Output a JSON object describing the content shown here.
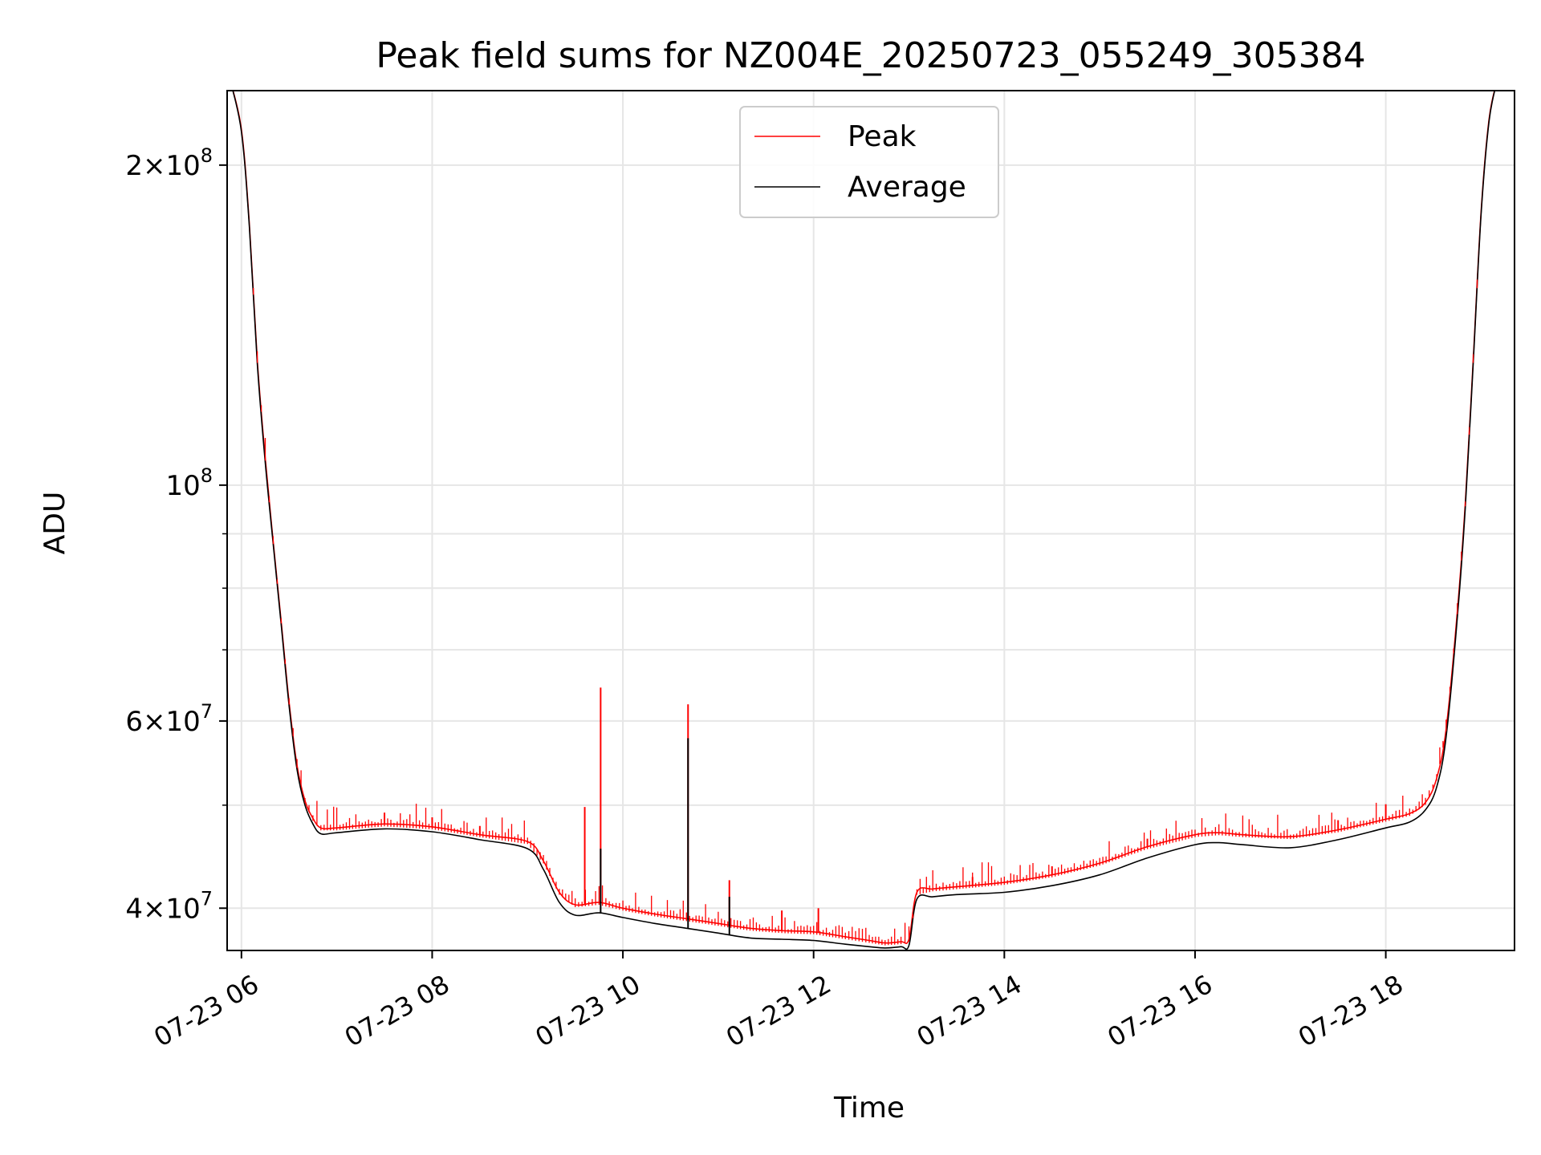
{
  "chart_data": {
    "type": "line",
    "title": "Peak field sums for NZ004E_20250723_055249_305384",
    "xlabel": "Time",
    "ylabel": "ADU",
    "yscale": "log",
    "grid": true,
    "legend": {
      "placement": "upper center",
      "entries": [
        {
          "name": "Peak",
          "color": "#ff0000"
        },
        {
          "name": "Average",
          "color": "#000000"
        }
      ]
    },
    "xlim": [
      "2025-07-23 05:51",
      "2025-07-23 19:21"
    ],
    "ylim": [
      36500000,
      235000000
    ],
    "x_ticks": [
      {
        "label": "07-23 06",
        "value": "2025-07-23 06:00"
      },
      {
        "label": "07-23 08",
        "value": "2025-07-23 08:00"
      },
      {
        "label": "07-23 10",
        "value": "2025-07-23 10:00"
      },
      {
        "label": "07-23 12",
        "value": "2025-07-23 12:00"
      },
      {
        "label": "07-23 14",
        "value": "2025-07-23 14:00"
      },
      {
        "label": "07-23 16",
        "value": "2025-07-23 16:00"
      },
      {
        "label": "07-23 18",
        "value": "2025-07-23 18:00"
      }
    ],
    "y_ticks": [
      {
        "mant": "4",
        "exp": "7",
        "value": 40000000
      },
      {
        "mant": "6",
        "exp": "7",
        "value": 60000000
      },
      {
        "mant": "",
        "exp": "8",
        "value": 100000000
      },
      {
        "mant": "2",
        "exp": "8",
        "value": 200000000
      }
    ],
    "y_minor_ticks": [
      50000000,
      70000000,
      80000000,
      90000000
    ],
    "series": [
      {
        "name": "Average",
        "color": "#000000",
        "x": [
          "2025-07-23 05:53",
          "2025-07-23 06:00",
          "2025-07-23 06:05",
          "2025-07-23 06:10",
          "2025-07-23 06:15",
          "2025-07-23 06:20",
          "2025-07-23 06:25",
          "2025-07-23 06:30",
          "2025-07-23 06:35",
          "2025-07-23 06:40",
          "2025-07-23 06:45",
          "2025-07-23 06:50",
          "2025-07-23 07:00",
          "2025-07-23 07:30",
          "2025-07-23 08:00",
          "2025-07-23 08:30",
          "2025-07-23 09:00",
          "2025-07-23 09:10",
          "2025-07-23 09:20",
          "2025-07-23 09:30",
          "2025-07-23 09:45",
          "2025-07-23 10:00",
          "2025-07-23 10:20",
          "2025-07-23 10:40",
          "2025-07-23 11:00",
          "2025-07-23 11:20",
          "2025-07-23 11:40",
          "2025-07-23 12:00",
          "2025-07-23 12:20",
          "2025-07-23 12:35",
          "2025-07-23 12:45",
          "2025-07-23 12:55",
          "2025-07-23 13:00",
          "2025-07-23 13:05",
          "2025-07-23 13:15",
          "2025-07-23 13:30",
          "2025-07-23 14:00",
          "2025-07-23 14:30",
          "2025-07-23 15:00",
          "2025-07-23 15:30",
          "2025-07-23 16:00",
          "2025-07-23 16:15",
          "2025-07-23 16:30",
          "2025-07-23 17:00",
          "2025-07-23 17:30",
          "2025-07-23 18:00",
          "2025-07-23 18:15",
          "2025-07-23 18:25",
          "2025-07-23 18:32",
          "2025-07-23 18:38",
          "2025-07-23 18:45",
          "2025-07-23 18:50",
          "2025-07-23 18:55",
          "2025-07-23 19:00",
          "2025-07-23 19:05",
          "2025-07-23 19:10"
        ],
        "y": [
          240000000,
          215000000,
          175000000,
          130000000,
          105000000,
          88000000,
          74000000,
          62000000,
          54000000,
          50000000,
          48000000,
          47000000,
          47100000,
          47500000,
          47200000,
          46400000,
          45500000,
          43500000,
          40500000,
          39400000,
          39600000,
          39200000,
          38700000,
          38300000,
          37900000,
          37500000,
          37400000,
          37300000,
          37000000,
          36800000,
          36700000,
          36800000,
          36900000,
          40800000,
          41000000,
          41200000,
          41400000,
          42000000,
          43000000,
          44600000,
          45900000,
          46100000,
          45900000,
          45600000,
          46400000,
          47600000,
          48200000,
          49500000,
          52000000,
          58000000,
          75000000,
          95000000,
          130000000,
          180000000,
          220000000,
          240000000
        ]
      },
      {
        "name": "Peak",
        "color": "#ff0000",
        "x": [
          "2025-07-23 05:53",
          "2025-07-23 06:00",
          "2025-07-23 06:05",
          "2025-07-23 06:10",
          "2025-07-23 06:15",
          "2025-07-23 06:20",
          "2025-07-23 06:25",
          "2025-07-23 06:30",
          "2025-07-23 06:35",
          "2025-07-23 06:40",
          "2025-07-23 06:45",
          "2025-07-23 06:50",
          "2025-07-23 07:00",
          "2025-07-23 07:30",
          "2025-07-23 08:00",
          "2025-07-23 08:30",
          "2025-07-23 09:00",
          "2025-07-23 09:10",
          "2025-07-23 09:20",
          "2025-07-23 09:30",
          "2025-07-23 09:45",
          "2025-07-23 10:00",
          "2025-07-23 10:20",
          "2025-07-23 10:40",
          "2025-07-23 11:00",
          "2025-07-23 11:20",
          "2025-07-23 11:40",
          "2025-07-23 12:00",
          "2025-07-23 12:20",
          "2025-07-23 12:35",
          "2025-07-23 12:45",
          "2025-07-23 12:55",
          "2025-07-23 13:00",
          "2025-07-23 13:05",
          "2025-07-23 13:15",
          "2025-07-23 13:30",
          "2025-07-23 14:00",
          "2025-07-23 14:30",
          "2025-07-23 15:00",
          "2025-07-23 15:30",
          "2025-07-23 16:00",
          "2025-07-23 16:15",
          "2025-07-23 16:30",
          "2025-07-23 17:00",
          "2025-07-23 17:30",
          "2025-07-23 18:00",
          "2025-07-23 18:15",
          "2025-07-23 18:25",
          "2025-07-23 18:32",
          "2025-07-23 18:38",
          "2025-07-23 18:45",
          "2025-07-23 18:50",
          "2025-07-23 18:55",
          "2025-07-23 19:00",
          "2025-07-23 19:05",
          "2025-07-23 19:10"
        ],
        "y": [
          240000000,
          216000000,
          176000000,
          131000000,
          106000000,
          88500000,
          74500000,
          62500000,
          54500000,
          50500000,
          48600000,
          47600000,
          47600000,
          48000000,
          47700000,
          46900000,
          46200000,
          44300000,
          41400000,
          40300000,
          40500000,
          40000000,
          39500000,
          39100000,
          38700000,
          38300000,
          38100000,
          38000000,
          37600000,
          37300000,
          37100000,
          37200000,
          37400000,
          41400000,
          41700000,
          41900000,
          42300000,
          43000000,
          44100000,
          45700000,
          46900000,
          47100000,
          46900000,
          46700000,
          47400000,
          48500000,
          49100000,
          50300000,
          53000000,
          59000000,
          76000000,
          96000000,
          131000000,
          181000000,
          221000000,
          240000000
        ]
      }
    ],
    "peak_spikes": [
      {
        "x": "2025-07-23 07:30",
        "y": 49200000
      },
      {
        "x": "2025-07-23 08:00",
        "y": 48700000
      },
      {
        "x": "2025-07-23 08:30",
        "y": 47800000
      },
      {
        "x": "2025-07-23 09:36",
        "y": 49800000
      },
      {
        "x": "2025-07-23 09:46",
        "y": 64500000
      },
      {
        "x": "2025-07-23 10:41",
        "y": 62200000
      },
      {
        "x": "2025-07-23 11:07",
        "y": 42500000
      },
      {
        "x": "2025-07-23 11:40",
        "y": 39800000
      },
      {
        "x": "2025-07-23 12:03",
        "y": 40000000
      },
      {
        "x": "2025-07-23 13:40",
        "y": 42800000
      },
      {
        "x": "2025-07-23 14:30",
        "y": 43800000
      },
      {
        "x": "2025-07-23 15:30",
        "y": 46500000
      },
      {
        "x": "2025-07-23 17:30",
        "y": 48400000
      },
      {
        "x": "2025-07-23 18:00",
        "y": 50100000
      }
    ],
    "average_spikes": [
      {
        "x": "2025-07-23 09:46",
        "y": 45500000
      },
      {
        "x": "2025-07-23 10:41",
        "y": 57800000
      },
      {
        "x": "2025-07-23 11:07",
        "y": 41000000
      }
    ]
  }
}
